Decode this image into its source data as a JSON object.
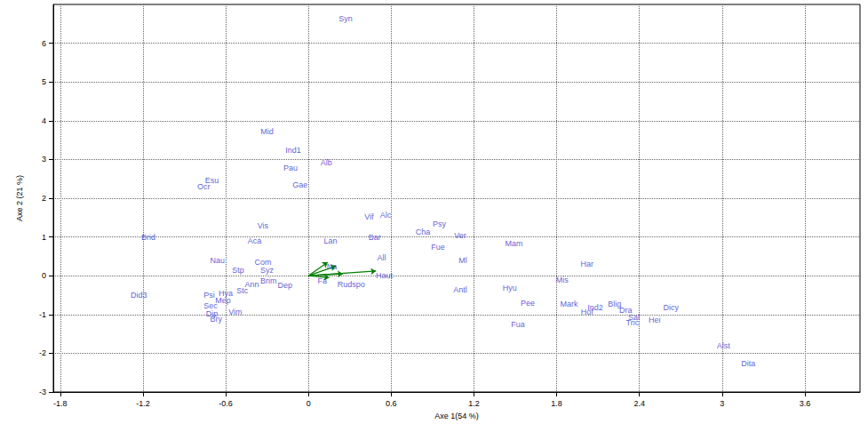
{
  "chart_data": {
    "type": "scatter",
    "x_label": "Axe 1(54 %)",
    "y_label": "Axe 2 (21 %)",
    "xlim": [
      -1.85,
      4.0
    ],
    "ylim": [
      -3,
      7
    ],
    "xticks": [
      -1.8,
      -1.2,
      -0.6,
      0,
      0.6,
      1.2,
      1.8,
      2.4,
      3,
      3.6
    ],
    "yticks": [
      -3,
      -2,
      -1,
      0,
      1,
      2,
      3,
      4,
      5,
      6
    ],
    "grid": true,
    "color": "#3333cc",
    "marker": "none",
    "points": [
      {
        "label": "Syn",
        "x": 0.27,
        "y": 6.64
      },
      {
        "label": "Mid",
        "x": -0.3,
        "y": 3.71
      },
      {
        "label": "Ind1",
        "x": -0.11,
        "y": 3.25
      },
      {
        "label": "Alb",
        "x": 0.13,
        "y": 2.91
      },
      {
        "label": "Pau",
        "x": -0.13,
        "y": 2.77
      },
      {
        "label": "Esu",
        "x": -0.7,
        "y": 2.45
      },
      {
        "label": "Ocr",
        "x": -0.76,
        "y": 2.3
      },
      {
        "label": "Gae",
        "x": -0.06,
        "y": 2.34
      },
      {
        "label": "Vif",
        "x": 0.44,
        "y": 1.51
      },
      {
        "label": "Alc",
        "x": 0.56,
        "y": 1.56
      },
      {
        "label": "Psy",
        "x": 0.95,
        "y": 1.33
      },
      {
        "label": "Cha",
        "x": 0.83,
        "y": 1.13
      },
      {
        "label": "Ver",
        "x": 1.1,
        "y": 1.03
      },
      {
        "label": "Vis",
        "x": -0.33,
        "y": 1.29
      },
      {
        "label": "Brid",
        "x": -1.16,
        "y": 0.99
      },
      {
        "label": "Aca",
        "x": -0.39,
        "y": 0.9
      },
      {
        "label": "Lan",
        "x": 0.16,
        "y": 0.9
      },
      {
        "label": "Bar",
        "x": 0.48,
        "y": 0.99
      },
      {
        "label": "Mam",
        "x": 1.49,
        "y": 0.83
      },
      {
        "label": "Fue",
        "x": 0.94,
        "y": 0.74
      },
      {
        "label": "All",
        "x": 0.53,
        "y": 0.46
      },
      {
        "label": "Ml",
        "x": 1.12,
        "y": 0.39
      },
      {
        "label": "Har",
        "x": 2.02,
        "y": 0.3
      },
      {
        "label": "Nau",
        "x": -0.66,
        "y": 0.39
      },
      {
        "label": "Com",
        "x": -0.33,
        "y": 0.35
      },
      {
        "label": "Stp",
        "x": -0.51,
        "y": 0.14
      },
      {
        "label": "Syz",
        "x": -0.3,
        "y": 0.14
      },
      {
        "label": "Mis",
        "x": 1.84,
        "y": -0.11
      },
      {
        "label": "Haut",
        "x": 0.55,
        "y": 0.0
      },
      {
        "label": "Na",
        "x": 0.17,
        "y": 0.23
      },
      {
        "label": "Fa",
        "x": 0.1,
        "y": -0.13
      },
      {
        "label": "Rudspo",
        "x": 0.31,
        "y": -0.22
      },
      {
        "label": "Ann",
        "x": -0.41,
        "y": -0.22
      },
      {
        "label": "Brim",
        "x": -0.29,
        "y": -0.14
      },
      {
        "label": "Dep",
        "x": -0.17,
        "y": -0.25
      },
      {
        "label": "Did3",
        "x": -1.23,
        "y": -0.5
      },
      {
        "label": "Stc",
        "x": -0.48,
        "y": -0.38
      },
      {
        "label": "Psi",
        "x": -0.72,
        "y": -0.5
      },
      {
        "label": "Hya",
        "x": -0.6,
        "y": -0.46
      },
      {
        "label": "Mep",
        "x": -0.62,
        "y": -0.64
      },
      {
        "label": "Antl",
        "x": 1.1,
        "y": -0.36
      },
      {
        "label": "Hyu",
        "x": 1.46,
        "y": -0.32
      },
      {
        "label": "Sec",
        "x": -0.71,
        "y": -0.77
      },
      {
        "label": "Pee",
        "x": 1.59,
        "y": -0.71
      },
      {
        "label": "Mark",
        "x": 1.89,
        "y": -0.73
      },
      {
        "label": "Blig",
        "x": 2.22,
        "y": -0.72
      },
      {
        "label": "Ind2",
        "x": 2.08,
        "y": -0.82
      },
      {
        "label": "Hof",
        "x": 2.02,
        "y": -0.93
      },
      {
        "label": "Dra",
        "x": 2.3,
        "y": -0.9
      },
      {
        "label": "Vim",
        "x": -0.53,
        "y": -0.94
      },
      {
        "label": "Dip",
        "x": -0.7,
        "y": -0.98
      },
      {
        "label": "Bry",
        "x": -0.67,
        "y": -1.12
      },
      {
        "label": "Sal",
        "x": 2.36,
        "y": -1.07
      },
      {
        "label": "Tric",
        "x": 2.35,
        "y": -1.21
      },
      {
        "label": "Hei",
        "x": 2.51,
        "y": -1.14
      },
      {
        "label": "Dicy",
        "x": 2.63,
        "y": -0.82
      },
      {
        "label": "Fua",
        "x": 1.52,
        "y": -1.25
      },
      {
        "label": "Alst",
        "x": 3.01,
        "y": -1.8
      },
      {
        "label": "Dita",
        "x": 3.19,
        "y": -2.26
      }
    ],
    "vectors": {
      "color": "#008000",
      "line_style": "solid",
      "x": [
        0.49,
        0.14,
        0.2,
        0.25,
        0.15
      ],
      "y": [
        0.12,
        0.35,
        0.25,
        0.05,
        -0.05
      ]
    }
  }
}
